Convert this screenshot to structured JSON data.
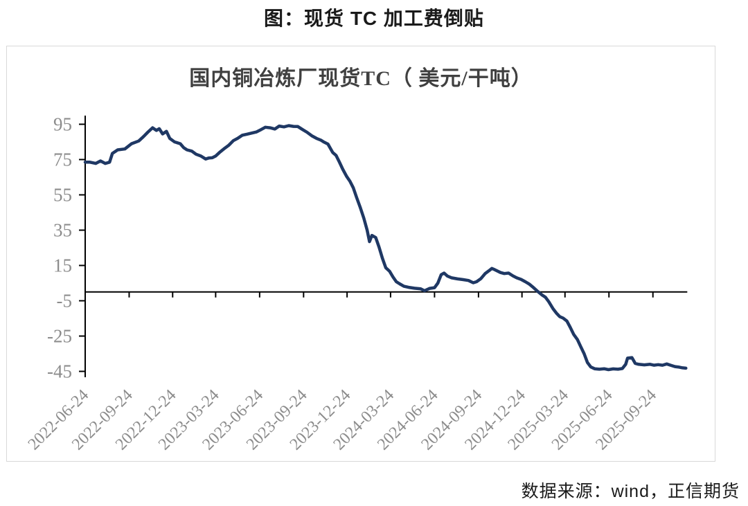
{
  "page": {
    "title": "图：现货 TC 加工费倒贴",
    "source": "数据来源：wind，正信期货"
  },
  "chart_data": {
    "type": "line",
    "title": "国内铜冶炼厂现货TC（ 美元/干吨）",
    "unit": "美元/干吨",
    "legend": "none",
    "grid": false,
    "line_color": "#1F3864",
    "axis_color": "#000000",
    "tick_label_color": "#8C8C8C",
    "title_color": "#404040",
    "ylim": [
      -45,
      95
    ],
    "y_ticks": [
      95,
      75,
      55,
      35,
      15,
      -5,
      -25,
      -45
    ],
    "zero_baseline": 0,
    "x_range": [
      "2022-06-24",
      "2025-12-02"
    ],
    "x_ticks": [
      "2022-06-24",
      "2022-09-24",
      "2022-12-24",
      "2023-03-24",
      "2023-06-24",
      "2023-09-24",
      "2023-12-24",
      "2024-03-24",
      "2024-06-24",
      "2024-09-24",
      "2024-12-24",
      "2025-03-24",
      "2025-06-24",
      "2025-09-24"
    ],
    "series": [
      {
        "name": "国内铜冶炼厂现货TC",
        "points": [
          [
            "2022-06-24",
            73.5
          ],
          [
            "2022-07-04",
            73.5
          ],
          [
            "2022-07-16",
            72.8
          ],
          [
            "2022-07-26",
            74.2
          ],
          [
            "2022-08-05",
            72.8
          ],
          [
            "2022-08-14",
            73.5
          ],
          [
            "2022-08-20",
            78.5
          ],
          [
            "2022-08-31",
            80.5
          ],
          [
            "2022-09-15",
            81
          ],
          [
            "2022-09-29",
            84
          ],
          [
            "2022-10-14",
            85.5
          ],
          [
            "2022-10-24",
            88
          ],
          [
            "2022-11-02",
            90.5
          ],
          [
            "2022-11-12",
            93
          ],
          [
            "2022-11-20",
            91.5
          ],
          [
            "2022-11-26",
            92.5
          ],
          [
            "2022-12-03",
            89.5
          ],
          [
            "2022-12-11",
            91
          ],
          [
            "2022-12-18",
            87
          ],
          [
            "2022-12-28",
            85
          ],
          [
            "2023-01-09",
            84
          ],
          [
            "2023-01-16",
            81.8
          ],
          [
            "2023-01-23",
            80.5
          ],
          [
            "2023-02-02",
            79.8
          ],
          [
            "2023-02-11",
            78
          ],
          [
            "2023-02-21",
            77
          ],
          [
            "2023-03-03",
            75.3
          ],
          [
            "2023-03-10",
            75.9
          ],
          [
            "2023-03-17",
            76
          ],
          [
            "2023-03-24",
            77
          ],
          [
            "2023-04-01",
            79
          ],
          [
            "2023-04-10",
            81
          ],
          [
            "2023-04-20",
            83
          ],
          [
            "2023-04-30",
            85.7
          ],
          [
            "2023-05-09",
            87
          ],
          [
            "2023-05-19",
            88.8
          ],
          [
            "2023-05-29",
            89.4
          ],
          [
            "2023-06-07",
            90
          ],
          [
            "2023-06-17",
            90.6
          ],
          [
            "2023-06-27",
            92
          ],
          [
            "2023-07-06",
            93.3
          ],
          [
            "2023-07-16",
            93
          ],
          [
            "2023-07-26",
            92.3
          ],
          [
            "2023-08-04",
            94
          ],
          [
            "2023-08-14",
            93.5
          ],
          [
            "2023-08-24",
            94.2
          ],
          [
            "2023-09-03",
            93.8
          ],
          [
            "2023-09-12",
            93.7
          ],
          [
            "2023-09-22",
            92
          ],
          [
            "2023-10-01",
            90.5
          ],
          [
            "2023-10-11",
            88.5
          ],
          [
            "2023-10-21",
            87
          ],
          [
            "2023-10-30",
            86
          ],
          [
            "2023-11-05",
            85
          ],
          [
            "2023-11-14",
            83.8
          ],
          [
            "2023-11-24",
            79
          ],
          [
            "2023-12-01",
            77.3
          ],
          [
            "2023-12-08",
            73.5
          ],
          [
            "2023-12-15",
            69.5
          ],
          [
            "2023-12-23",
            65.5
          ],
          [
            "2023-12-30",
            62.7
          ],
          [
            "2024-01-06",
            59
          ],
          [
            "2024-01-13",
            53.5
          ],
          [
            "2024-01-21",
            47.6
          ],
          [
            "2024-01-28",
            41.8
          ],
          [
            "2024-02-04",
            35
          ],
          [
            "2024-02-09",
            28.5
          ],
          [
            "2024-02-14",
            32
          ],
          [
            "2024-02-22",
            30.8
          ],
          [
            "2024-02-29",
            25.4
          ],
          [
            "2024-03-07",
            19
          ],
          [
            "2024-03-14",
            13.7
          ],
          [
            "2024-03-22",
            11.7
          ],
          [
            "2024-03-29",
            8.5
          ],
          [
            "2024-04-05",
            5.8
          ],
          [
            "2024-04-12",
            4.6
          ],
          [
            "2024-04-21",
            3.2
          ],
          [
            "2024-05-01",
            2.6
          ],
          [
            "2024-05-13",
            2.1
          ],
          [
            "2024-05-26",
            1.8
          ],
          [
            "2024-06-03",
            0.7
          ],
          [
            "2024-06-14",
            2
          ],
          [
            "2024-06-24",
            2.4
          ],
          [
            "2024-07-01",
            5
          ],
          [
            "2024-07-08",
            9.8
          ],
          [
            "2024-07-14",
            10.7
          ],
          [
            "2024-07-21",
            9
          ],
          [
            "2024-07-30",
            8
          ],
          [
            "2024-08-11",
            7.4
          ],
          [
            "2024-08-22",
            7
          ],
          [
            "2024-09-03",
            6.5
          ],
          [
            "2024-09-13",
            5.2
          ],
          [
            "2024-09-20",
            5.8
          ],
          [
            "2024-09-29",
            7.5
          ],
          [
            "2024-10-08",
            10.4
          ],
          [
            "2024-10-16",
            12
          ],
          [
            "2024-10-22",
            13.3
          ],
          [
            "2024-10-28",
            12.6
          ],
          [
            "2024-11-09",
            11
          ],
          [
            "2024-11-17",
            10.4
          ],
          [
            "2024-11-26",
            10.7
          ],
          [
            "2024-12-05",
            9.1
          ],
          [
            "2024-12-13",
            8
          ],
          [
            "2024-12-22",
            7.1
          ],
          [
            "2024-12-31",
            5.8
          ],
          [
            "2025-01-08",
            4.5
          ],
          [
            "2025-01-17",
            2.5
          ],
          [
            "2025-01-26",
            0.3
          ],
          [
            "2025-02-04",
            -1.7
          ],
          [
            "2025-02-11",
            -3
          ],
          [
            "2025-02-18",
            -5.5
          ],
          [
            "2025-02-27",
            -9.5
          ],
          [
            "2025-03-06",
            -12
          ],
          [
            "2025-03-13",
            -14
          ],
          [
            "2025-03-20",
            -14.8
          ],
          [
            "2025-03-28",
            -16.5
          ],
          [
            "2025-04-04",
            -20
          ],
          [
            "2025-04-11",
            -24
          ],
          [
            "2025-04-19",
            -27
          ],
          [
            "2025-04-26",
            -31
          ],
          [
            "2025-05-03",
            -35
          ],
          [
            "2025-05-10",
            -40
          ],
          [
            "2025-05-17",
            -42.5
          ],
          [
            "2025-05-25",
            -43.5
          ],
          [
            "2025-06-04",
            -43.8
          ],
          [
            "2025-06-14",
            -43.5
          ],
          [
            "2025-06-23",
            -44
          ],
          [
            "2025-07-03",
            -43.6
          ],
          [
            "2025-07-13",
            -43.8
          ],
          [
            "2025-07-22",
            -43.4
          ],
          [
            "2025-07-29",
            -41
          ],
          [
            "2025-08-02",
            -37.5
          ],
          [
            "2025-08-11",
            -37.2
          ],
          [
            "2025-08-18",
            -40.5
          ],
          [
            "2025-08-25",
            -41
          ],
          [
            "2025-09-06",
            -41.3
          ],
          [
            "2025-09-18",
            -41
          ],
          [
            "2025-09-26",
            -41.5
          ],
          [
            "2025-10-05",
            -41.2
          ],
          [
            "2025-10-14",
            -41.5
          ],
          [
            "2025-10-23",
            -40.8
          ],
          [
            "2025-10-31",
            -41.5
          ],
          [
            "2025-11-09",
            -42.3
          ],
          [
            "2025-11-18",
            -42.6
          ],
          [
            "2025-11-25",
            -43
          ],
          [
            "2025-12-02",
            -43.2
          ]
        ]
      }
    ]
  }
}
